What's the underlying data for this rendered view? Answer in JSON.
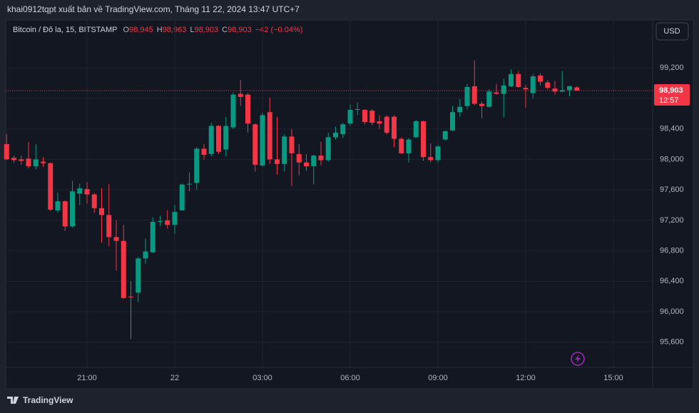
{
  "header": {
    "title": "khai0912tqpt xuất bản về TradingView.com, Tháng 11 22, 2024 13:47 UTC+7"
  },
  "legend": {
    "symbol": "Bitcoin / Đô la, 15, BITSTAMP",
    "items": [
      {
        "key": "O",
        "value": "98,945"
      },
      {
        "key": "H",
        "value": "98,963"
      },
      {
        "key": "L",
        "value": "98,903"
      },
      {
        "key": "C",
        "value": "98,903"
      }
    ],
    "change": "−42 (−0.04%)"
  },
  "currency_button": "USD",
  "footer": {
    "brand": "TradingView"
  },
  "chart_data": {
    "type": "candlestick",
    "up_color": "#089981",
    "down_color": "#f23645",
    "grid": true,
    "categories": [
      null,
      null,
      null,
      null,
      null,
      null,
      null,
      null,
      null,
      null,
      null,
      "21:00",
      null,
      null,
      null,
      null,
      null,
      null,
      null,
      null,
      null,
      null,
      null,
      "22",
      null,
      null,
      null,
      null,
      null,
      null,
      null,
      null,
      null,
      null,
      null,
      "03:00",
      null,
      null,
      null,
      null,
      null,
      null,
      null,
      null,
      null,
      null,
      null,
      "06:00",
      null,
      null,
      null,
      null,
      null,
      null,
      null,
      null,
      null,
      null,
      null,
      "09:00",
      null,
      null,
      null,
      null,
      null,
      null,
      null,
      null,
      null,
      null,
      null,
      "12:00",
      null,
      null,
      null,
      null,
      null,
      null,
      null,
      null,
      null,
      null,
      null,
      "15:00",
      null,
      null,
      null,
      null,
      null
    ],
    "open": [
      98200,
      98020,
      98000,
      98010,
      97910,
      97970,
      97950,
      97330,
      97450,
      97120,
      97550,
      97610,
      97540,
      97360,
      97270,
      96980,
      96930,
      96200,
      96250,
      96700,
      96780,
      97180,
      97200,
      97140,
      97330,
      97670,
      97690,
      98140,
      98070,
      98440,
      98130,
      98420,
      98860,
      98850,
      98460,
      97920,
      98620,
      98000,
      97940,
      98300,
      98070,
      97960,
      97910,
      98050,
      97990,
      98290,
      98330,
      98470,
      98650,
      98650,
      98640,
      98500,
      98560,
      98560,
      98270,
      98080,
      98290,
      98500,
      98030,
      97990,
      98260,
      98380,
      98620,
      98700,
      98960,
      98730,
      98690,
      98880,
      98860,
      98960,
      99120,
      98940,
      98870,
      99100,
      99010,
      98930,
      98890,
      98910,
      98945,
      null,
      null,
      null,
      null,
      null,
      null,
      null,
      null,
      null,
      null
    ],
    "high": [
      98330,
      98050,
      98050,
      98230,
      98200,
      98030,
      97960,
      97560,
      97460,
      97720,
      97680,
      97700,
      97560,
      97620,
      97680,
      97200,
      97140,
      96400,
      96720,
      96960,
      97240,
      97260,
      97330,
      97400,
      97680,
      97830,
      98160,
      98200,
      98480,
      98450,
      98560,
      98880,
      99040,
      98870,
      98470,
      98610,
      98810,
      98560,
      98330,
      98400,
      98200,
      98070,
      98060,
      98230,
      98350,
      98430,
      98480,
      98720,
      98750,
      98660,
      98660,
      98580,
      98580,
      98580,
      98290,
      98280,
      98520,
      98510,
      98210,
      98190,
      98380,
      98700,
      98790,
      98990,
      99300,
      98760,
      98920,
      98990,
      99060,
      99180,
      99160,
      98980,
      99120,
      99130,
      99040,
      99030,
      99160,
      98970,
      98963,
      null,
      null,
      null,
      null,
      null,
      null,
      null,
      null,
      null,
      null
    ],
    "low": [
      97990,
      97950,
      97930,
      97880,
      97870,
      97900,
      97320,
      97300,
      97060,
      97100,
      97400,
      97420,
      97300,
      96910,
      96860,
      96540,
      96170,
      95640,
      96130,
      96630,
      96770,
      97130,
      97090,
      97020,
      97330,
      97580,
      97600,
      98000,
      98040,
      98070,
      98040,
      98400,
      98700,
      98350,
      97840,
      97900,
      97940,
      97800,
      97840,
      97650,
      97790,
      97850,
      97670,
      97920,
      97970,
      98260,
      98280,
      98440,
      98580,
      98460,
      98450,
      98400,
      98330,
      98160,
      98070,
      97960,
      98280,
      97980,
      97960,
      97960,
      98250,
      98370,
      98560,
      98660,
      98710,
      98540,
      98680,
      98850,
      98550,
      98950,
      98940,
      98680,
      98800,
      98970,
      98920,
      98850,
      98880,
      98830,
      98903,
      null,
      null,
      null,
      null,
      null,
      null,
      null,
      null,
      null,
      null
    ],
    "close": [
      98000,
      97990,
      97980,
      97910,
      98000,
      97950,
      97340,
      97450,
      97120,
      97580,
      97620,
      97540,
      97360,
      97270,
      96980,
      96930,
      96180,
      96190,
      96700,
      96790,
      97180,
      97190,
      97140,
      97310,
      97670,
      97680,
      98140,
      98060,
      98440,
      98100,
      98440,
      98850,
      98820,
      98470,
      97930,
      98580,
      98000,
      97940,
      98300,
      98080,
      97960,
      97910,
      98050,
      97990,
      98290,
      98350,
      98460,
      98650,
      98660,
      98490,
      98480,
      98470,
      98350,
      98270,
      98080,
      98260,
      98500,
      98030,
      97990,
      98170,
      98370,
      98620,
      98690,
      98950,
      98730,
      98700,
      98890,
      98860,
      98970,
      99120,
      98950,
      98920,
      99090,
      99020,
      98940,
      98890,
      98910,
      98960,
      98903,
      null,
      null,
      null,
      null,
      null,
      null,
      null,
      null,
      null,
      null
    ],
    "ylim": [
      95270,
      99830
    ],
    "yticks": [
      {
        "value": 95600,
        "label": "95,600"
      },
      {
        "value": 96000,
        "label": "96,000"
      },
      {
        "value": 96400,
        "label": "96,400"
      },
      {
        "value": 96800,
        "label": "96,800"
      },
      {
        "value": 97200,
        "label": "97,200"
      },
      {
        "value": 97600,
        "label": "97,600"
      },
      {
        "value": 98000,
        "label": "98,000"
      },
      {
        "value": 98400,
        "label": "98,400"
      },
      {
        "value": 98800,
        "label": "98,800"
      },
      {
        "value": 99200,
        "label": "99,200"
      }
    ],
    "last_price": {
      "value": 98903,
      "label": "98,903"
    },
    "countdown": "12:57"
  }
}
